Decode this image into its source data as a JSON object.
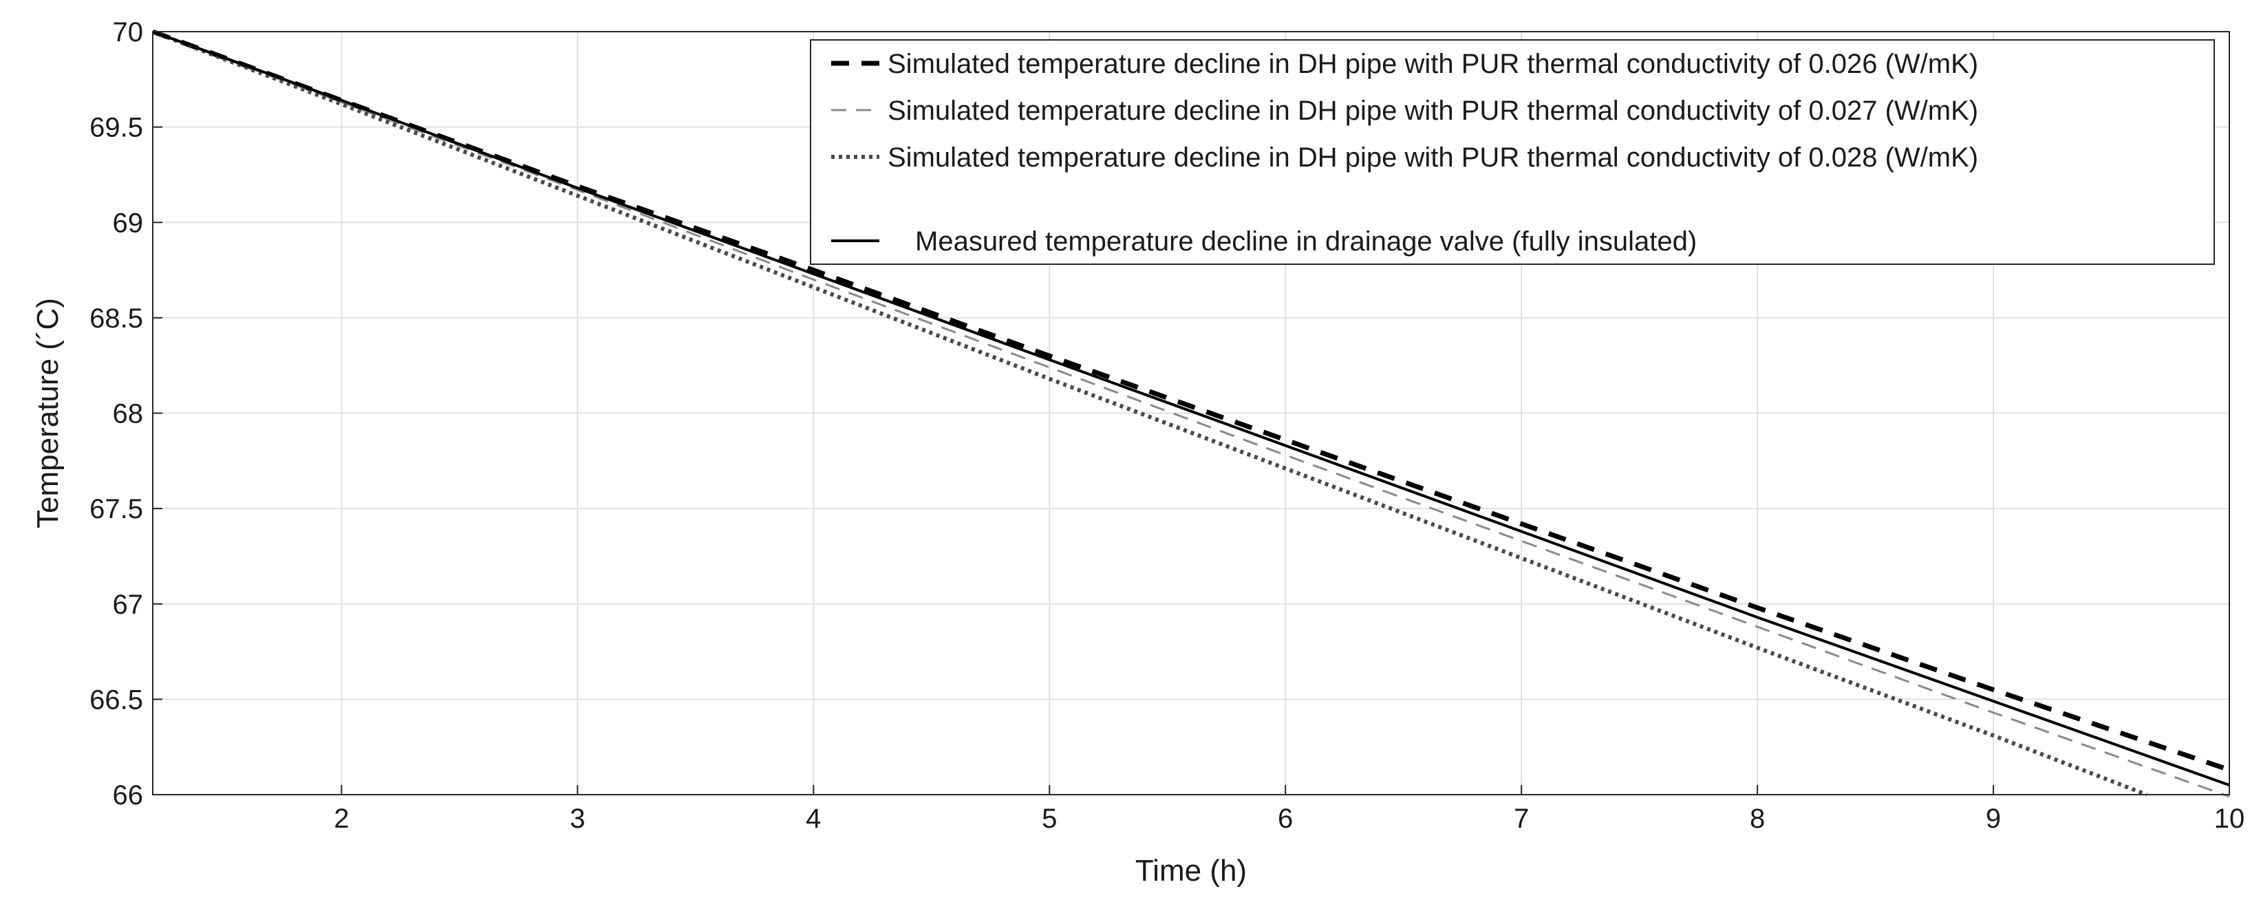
{
  "chart_data": {
    "type": "line",
    "xlabel": "Time (h)",
    "ylabel": "Temperature (´C)",
    "xlim": [
      1.2,
      10
    ],
    "ylim": [
      66,
      70
    ],
    "xticks": [
      2,
      3,
      4,
      5,
      6,
      7,
      8,
      9,
      10
    ],
    "yticks": [
      66,
      66.5,
      67,
      67.5,
      68,
      68.5,
      69,
      69.5,
      70
    ],
    "grid": true,
    "legend_position": "top-right",
    "series": [
      {
        "name": "Simulated temperature decline in DH pipe with PUR thermal conductivity of 0.026 (W/mK)",
        "style": "dashed-bold",
        "color": "#000000",
        "x": [
          1.2,
          2,
          3,
          4,
          5,
          6,
          7,
          8,
          9,
          10
        ],
        "y": [
          70.0,
          69.64,
          69.19,
          68.75,
          68.3,
          67.86,
          67.42,
          66.98,
          66.55,
          66.13
        ]
      },
      {
        "name": "Simulated temperature decline in DH pipe with PUR thermal conductivity of 0.027 (W/mK)",
        "style": "dashed-thin",
        "color": "#8a8a8a",
        "x": [
          1.2,
          2,
          3,
          4,
          5,
          6,
          7,
          8,
          9,
          10
        ],
        "y": [
          70.0,
          69.63,
          69.17,
          68.7,
          68.24,
          67.78,
          67.33,
          66.88,
          66.43,
          65.99
        ]
      },
      {
        "name": "Simulated temperature decline in DH pipe with PUR thermal conductivity of 0.028 (W/mK)",
        "style": "dotted",
        "color": "#4a4a4a",
        "x": [
          1.2,
          2,
          3,
          4,
          5,
          6,
          7,
          8,
          9,
          9.65
        ],
        "y": [
          70.0,
          69.62,
          69.14,
          68.66,
          68.18,
          67.71,
          67.24,
          66.77,
          66.31,
          66.0
        ]
      },
      {
        "name": "Measured temperature decline in drainage valve (fully insulated)",
        "style": "solid",
        "color": "#000000",
        "x": [
          1.2,
          2,
          3,
          4,
          5,
          6,
          7,
          8,
          9,
          10
        ],
        "y": [
          70.0,
          69.64,
          69.18,
          68.73,
          68.28,
          67.83,
          67.38,
          66.93,
          66.49,
          66.05
        ]
      }
    ]
  }
}
